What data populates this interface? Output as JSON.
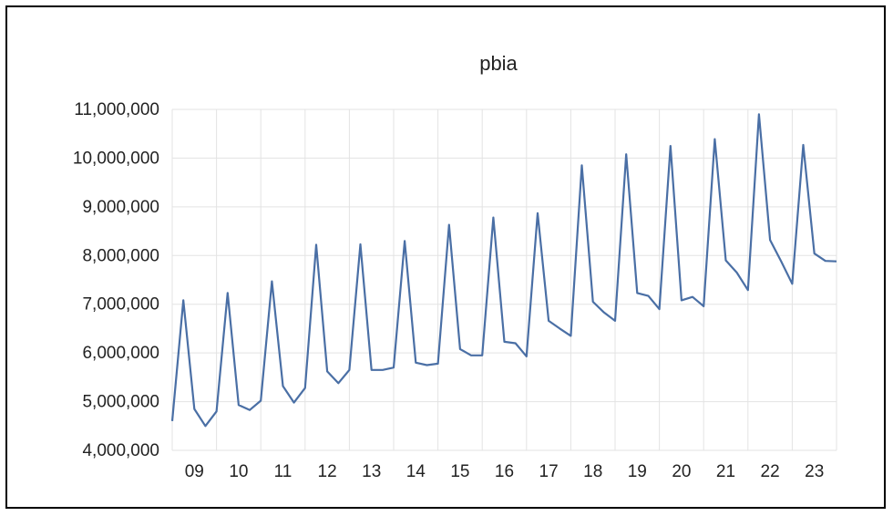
{
  "chart_data": {
    "type": "line",
    "title": "pbia",
    "xlabel": "",
    "ylabel": "",
    "x_tick_labels": [
      "09",
      "10",
      "11",
      "12",
      "13",
      "14",
      "15",
      "16",
      "17",
      "18",
      "19",
      "20",
      "21",
      "22",
      "23"
    ],
    "y_tick_labels": [
      "4,000,000",
      "5,000,000",
      "6,000,000",
      "7,000,000",
      "8,000,000",
      "9,000,000",
      "10,000,000",
      "11,000,000"
    ],
    "ylim": [
      4000000,
      11000000
    ],
    "xlim": [
      2008.75,
      2023.75
    ],
    "grid": {
      "vertical": true,
      "horizontal": true
    },
    "legend": "none",
    "line_color": "#4a6fa5",
    "grid_color": "#e3e3e3",
    "series": [
      {
        "x": [
          2008.75,
          2009.0,
          2009.25,
          2009.5,
          2009.75,
          2010.0,
          2010.25,
          2010.5,
          2010.75,
          2011.0,
          2011.25,
          2011.5,
          2011.75,
          2012.0,
          2012.25,
          2012.5,
          2012.75,
          2013.0,
          2013.25,
          2013.5,
          2013.75,
          2014.0,
          2014.25,
          2014.5,
          2014.75,
          2015.0,
          2015.25,
          2015.5,
          2015.75,
          2016.0,
          2016.25,
          2016.5,
          2016.75,
          2017.0,
          2017.25,
          2017.5,
          2017.75,
          2018.0,
          2018.25,
          2018.5,
          2018.75,
          2019.0,
          2019.25,
          2019.5,
          2019.75,
          2020.0,
          2020.25,
          2020.5,
          2020.75,
          2021.0,
          2021.25,
          2021.5,
          2021.75,
          2022.0,
          2022.25,
          2022.5,
          2022.75,
          2023.0,
          2023.25,
          2023.5,
          2023.75
        ],
        "y": [
          4600000,
          7080000,
          4850000,
          4500000,
          4800000,
          7230000,
          4930000,
          4830000,
          5020000,
          7470000,
          5320000,
          4980000,
          5280000,
          8220000,
          5620000,
          5380000,
          5650000,
          8230000,
          5650000,
          5650000,
          5700000,
          8300000,
          5800000,
          5750000,
          5780000,
          8630000,
          6080000,
          5950000,
          5950000,
          8780000,
          6230000,
          6200000,
          5930000,
          8870000,
          6660000,
          6500000,
          6350000,
          9850000,
          7050000,
          6830000,
          6660000,
          10080000,
          7230000,
          7170000,
          6900000,
          10250000,
          7080000,
          7150000,
          6960000,
          10390000,
          7900000,
          7650000,
          7290000,
          10900000,
          8320000,
          7880000,
          7420000,
          10270000,
          8040000,
          7890000,
          7880000
        ]
      }
    ]
  }
}
